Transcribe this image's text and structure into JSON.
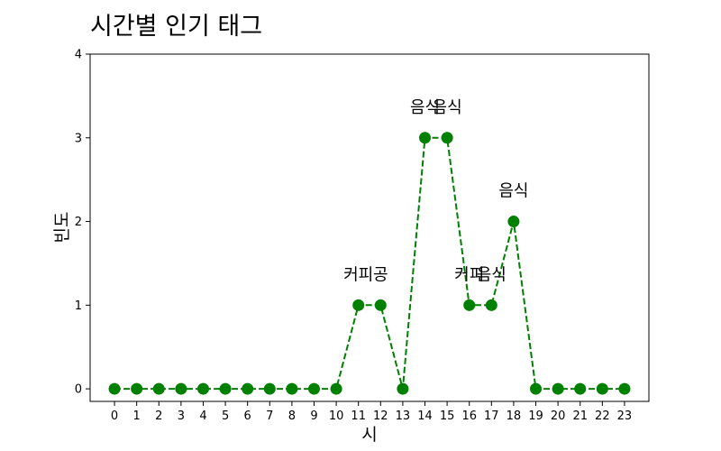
{
  "chart_data": {
    "type": "line",
    "title": "시간별 인기 태그",
    "xlabel": "시",
    "ylabel": "빈도",
    "x": [
      0,
      1,
      2,
      3,
      4,
      5,
      6,
      7,
      8,
      9,
      10,
      11,
      12,
      13,
      14,
      15,
      16,
      17,
      18,
      19,
      20,
      21,
      22,
      23
    ],
    "series": [
      {
        "values": [
          0,
          0,
          0,
          0,
          0,
          0,
          0,
          0,
          0,
          0,
          0,
          1,
          1,
          0,
          3,
          3,
          1,
          1,
          2,
          0,
          0,
          0,
          0,
          0
        ],
        "color": "#008000",
        "line_style": "dashed",
        "marker": "circle"
      }
    ],
    "xlim": [
      -1.1,
      24.1
    ],
    "ylim": [
      -0.15,
      4
    ],
    "yticks": [
      0,
      1,
      2,
      3,
      4
    ],
    "grid": false,
    "annotations": [
      {
        "x": 11,
        "y": 1,
        "text": "커피"
      },
      {
        "x": 12,
        "y": 1,
        "text": "공"
      },
      {
        "x": 14,
        "y": 3,
        "text": "음식"
      },
      {
        "x": 15,
        "y": 3,
        "text": "음식"
      },
      {
        "x": 16,
        "y": 1,
        "text": "커피"
      },
      {
        "x": 17,
        "y": 1,
        "text": "음식"
      },
      {
        "x": 18,
        "y": 2,
        "text": "음식"
      }
    ]
  }
}
